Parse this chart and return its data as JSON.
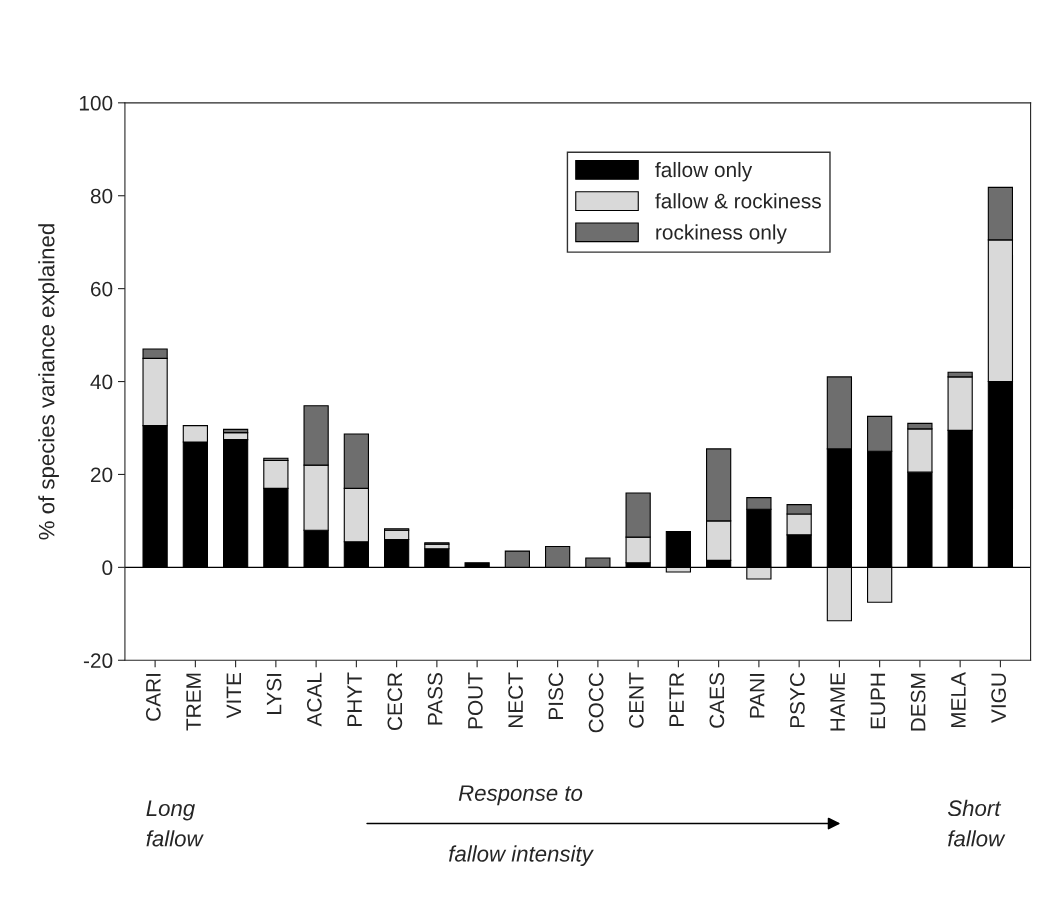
{
  "chart_data": {
    "type": "bar",
    "stacked": true,
    "categories": [
      "CARI",
      "TREM",
      "VITE",
      "LYSI",
      "ACAL",
      "PHYT",
      "CECR",
      "PASS",
      "POUT",
      "NECT",
      "PISC",
      "COCC",
      "CENT",
      "PETR",
      "CAES",
      "PANI",
      "PSYC",
      "HAME",
      "EUPH",
      "DESM",
      "MELA",
      "VIGU"
    ],
    "series": [
      {
        "name": "fallow only",
        "color": "#000000",
        "values": [
          30.5,
          27,
          27.5,
          17,
          8,
          5.5,
          6,
          4,
          1,
          null,
          null,
          null,
          1,
          7.7,
          1.5,
          12.5,
          7,
          25.5,
          25,
          20.5,
          29.5,
          40
        ]
      },
      {
        "name": "fallow & rockiness",
        "color": "#d9d9d9",
        "values": [
          14.5,
          3.5,
          1.5,
          6,
          14,
          11.5,
          2,
          1,
          null,
          null,
          null,
          null,
          5.5,
          -1,
          8.5,
          -2.5,
          4.5,
          -11.5,
          -7.5,
          9.3,
          11.5,
          30.5
        ]
      },
      {
        "name": "rockiness only",
        "color": "#6e6e6e",
        "values": [
          2,
          null,
          0.7,
          0.5,
          12.8,
          11.7,
          0.3,
          0.3,
          null,
          3.5,
          4.5,
          2,
          9.5,
          null,
          15.5,
          2.5,
          2,
          15.5,
          7.5,
          1.2,
          1,
          11.3
        ]
      }
    ],
    "ylabel": "% of species variance explained",
    "ylim": [
      -20,
      100
    ],
    "yticks": [
      -20,
      0,
      20,
      40,
      60,
      80,
      100
    ],
    "ref_lines": [
      {
        "axis": "y",
        "value": 0,
        "color": "#000000",
        "line_style": "solid"
      }
    ],
    "legend": "top right",
    "grid": false,
    "annotations": [
      "Long\nfallow",
      "Response to\n\nfallow intensity",
      "Short\nfallow"
    ]
  }
}
